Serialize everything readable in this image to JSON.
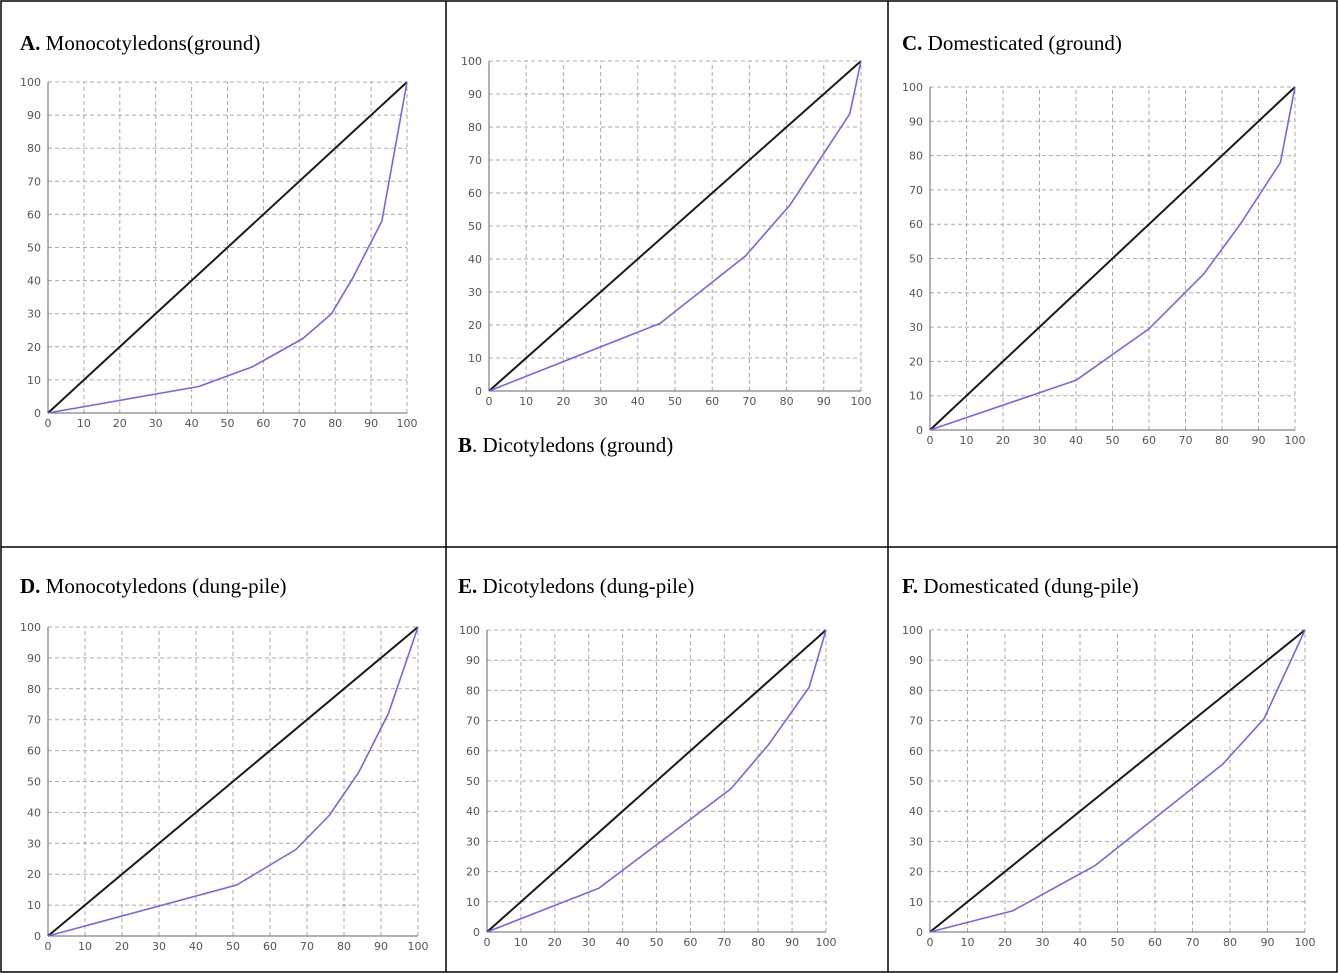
{
  "panels": [
    {
      "letter": "A.",
      "title": "Monocotyledons(ground)"
    },
    {
      "letter": "B",
      "title": ". Dicotyledons (ground)"
    },
    {
      "letter": "C.",
      "title": "Domesticated (ground)"
    },
    {
      "letter": "D.",
      "title": "Monocotyledons (dung-pile)"
    },
    {
      "letter": "E.",
      "title": "Dicotyledons (dung-pile)"
    },
    {
      "letter": "F.",
      "title": "Domesticated (dung-pile)"
    }
  ],
  "colors": {
    "equality_line": "#1a1a1a",
    "curve": "#6a6af0",
    "grid": "#aaaaaa",
    "border": "#000000"
  },
  "chart_data": [
    {
      "panel": "A",
      "type": "line",
      "xlim": [
        0,
        100
      ],
      "ylim": [
        0,
        100
      ],
      "grid": true,
      "x_ticks": [
        0,
        10,
        20,
        30,
        40,
        50,
        60,
        70,
        80,
        90,
        100
      ],
      "y_ticks": [
        0,
        10,
        20,
        30,
        40,
        50,
        60,
        70,
        80,
        90,
        100
      ],
      "series": [
        {
          "values": [
            [
              0,
              0
            ],
            [
              100,
              100
            ]
          ]
        },
        {
          "values": [
            [
              0,
              0
            ],
            [
              42,
              8
            ],
            [
              57,
              14
            ],
            [
              71,
              22.5
            ],
            [
              79,
              30
            ],
            [
              85,
              41
            ],
            [
              93,
              58
            ],
            [
              100,
              100
            ]
          ]
        }
      ]
    },
    {
      "panel": "B",
      "type": "line",
      "xlim": [
        0,
        100
      ],
      "ylim": [
        0,
        100
      ],
      "grid": true,
      "x_ticks": [
        0,
        10,
        20,
        30,
        40,
        50,
        60,
        70,
        80,
        90,
        100
      ],
      "y_ticks": [
        0,
        10,
        20,
        30,
        40,
        50,
        60,
        70,
        80,
        90,
        100
      ],
      "series": [
        {
          "values": [
            [
              0,
              0
            ],
            [
              100,
              100
            ]
          ]
        },
        {
          "values": [
            [
              0,
              0
            ],
            [
              46,
              20.5
            ],
            [
              69,
              41
            ],
            [
              81,
              56.5
            ],
            [
              97,
              84
            ],
            [
              100,
              100
            ]
          ]
        }
      ]
    },
    {
      "panel": "C",
      "type": "line",
      "xlim": [
        0,
        100
      ],
      "ylim": [
        0,
        100
      ],
      "grid": true,
      "x_ticks": [
        0,
        10,
        20,
        30,
        40,
        50,
        60,
        70,
        80,
        90,
        100
      ],
      "y_ticks": [
        0,
        10,
        20,
        30,
        40,
        50,
        60,
        70,
        80,
        90,
        100
      ],
      "series": [
        {
          "values": [
            [
              0,
              0
            ],
            [
              100,
              100
            ]
          ]
        },
        {
          "values": [
            [
              0,
              0
            ],
            [
              40,
              14.5
            ],
            [
              60,
              29.5
            ],
            [
              75,
              45.5
            ],
            [
              85,
              60
            ],
            [
              96,
              78
            ],
            [
              100,
              100
            ]
          ]
        }
      ]
    },
    {
      "panel": "D",
      "type": "line",
      "xlim": [
        0,
        100
      ],
      "ylim": [
        0,
        100
      ],
      "grid": true,
      "x_ticks": [
        0,
        10,
        20,
        30,
        40,
        50,
        60,
        70,
        80,
        90,
        100
      ],
      "y_ticks": [
        0,
        10,
        20,
        30,
        40,
        50,
        60,
        70,
        80,
        90,
        100
      ],
      "series": [
        {
          "values": [
            [
              0,
              0
            ],
            [
              100,
              100
            ]
          ]
        },
        {
          "values": [
            [
              0,
              0
            ],
            [
              51,
              16.5
            ],
            [
              67,
              28
            ],
            [
              76,
              39
            ],
            [
              84,
              53
            ],
            [
              92,
              72
            ],
            [
              100,
              100
            ]
          ]
        }
      ]
    },
    {
      "panel": "E",
      "type": "line",
      "xlim": [
        0,
        100
      ],
      "ylim": [
        0,
        100
      ],
      "grid": true,
      "x_ticks": [
        0,
        10,
        20,
        30,
        40,
        50,
        60,
        70,
        80,
        90,
        100
      ],
      "y_ticks": [
        0,
        10,
        20,
        30,
        40,
        50,
        60,
        70,
        80,
        90,
        100
      ],
      "series": [
        {
          "values": [
            [
              0,
              0
            ],
            [
              100,
              100
            ]
          ]
        },
        {
          "values": [
            [
              0,
              0
            ],
            [
              33,
              14.5
            ],
            [
              72,
              47.5
            ],
            [
              83,
              62
            ],
            [
              95,
              81
            ],
            [
              100,
              100
            ]
          ]
        }
      ]
    },
    {
      "panel": "F",
      "type": "line",
      "xlim": [
        0,
        100
      ],
      "ylim": [
        0,
        100
      ],
      "grid": true,
      "x_ticks": [
        0,
        10,
        20,
        30,
        40,
        50,
        60,
        70,
        80,
        90,
        100
      ],
      "y_ticks": [
        0,
        10,
        20,
        30,
        40,
        50,
        60,
        70,
        80,
        90,
        100
      ],
      "series": [
        {
          "values": [
            [
              0,
              0
            ],
            [
              100,
              100
            ]
          ]
        },
        {
          "values": [
            [
              0,
              0
            ],
            [
              22,
              7
            ],
            [
              44,
              22
            ],
            [
              78,
              55.5
            ],
            [
              89,
              70.5
            ],
            [
              100,
              100
            ]
          ]
        }
      ]
    }
  ]
}
